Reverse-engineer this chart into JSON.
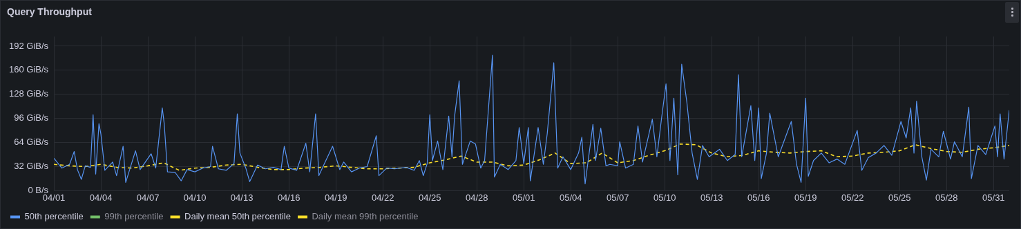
{
  "chart_data": {
    "type": "line",
    "title": "Query Throughput",
    "legend": "bottom",
    "grid": true,
    "marker": "none",
    "xlim": [
      "--04-01",
      "--06-01"
    ],
    "xticks": [
      {
        "value": "--04-01",
        "label": "04/01"
      },
      {
        "value": "--04-04",
        "label": "04/04"
      },
      {
        "value": "--04-07",
        "label": "04/07"
      },
      {
        "value": "--04-10",
        "label": "04/10"
      },
      {
        "value": "--04-13",
        "label": "04/13"
      },
      {
        "value": "--04-16",
        "label": "04/16"
      },
      {
        "value": "--04-19",
        "label": "04/19"
      },
      {
        "value": "--04-22",
        "label": "04/22"
      },
      {
        "value": "--04-25",
        "label": "04/25"
      },
      {
        "value": "--04-28",
        "label": "04/28"
      },
      {
        "value": "--05-01",
        "label": "05/01"
      },
      {
        "value": "--05-04",
        "label": "05/04"
      },
      {
        "value": "--05-07",
        "label": "05/07"
      },
      {
        "value": "--05-10",
        "label": "05/10"
      },
      {
        "value": "--05-13",
        "label": "05/13"
      },
      {
        "value": "--05-16",
        "label": "05/16"
      },
      {
        "value": "--05-19",
        "label": "05/19"
      },
      {
        "value": "--05-22",
        "label": "05/22"
      },
      {
        "value": "--05-25",
        "label": "05/25"
      },
      {
        "value": "--05-28",
        "label": "05/28"
      },
      {
        "value": "--05-31",
        "label": "05/31"
      }
    ],
    "ylim": [
      0,
      205
    ],
    "yticks": [
      {
        "value": 0,
        "label": "0 B/s"
      },
      {
        "value": 32,
        "label": "32 GiB/s"
      },
      {
        "value": 64,
        "label": "64 GiB/s"
      },
      {
        "value": 96,
        "label": "96 GiB/s"
      },
      {
        "value": 128,
        "label": "128 GiB/s"
      },
      {
        "value": 160,
        "label": "160 GiB/s"
      },
      {
        "value": 192,
        "label": "192 GiB/s"
      }
    ],
    "series": [
      {
        "name": "50th percentile",
        "color": "#5794f2",
        "line_style": "solid",
        "x": [
          "--04-01T00:00",
          "--04-01T12:00",
          "--04-02T00:00",
          "--04-02T07:00",
          "--04-02T12:00",
          "--04-02T18:00",
          "--04-03T00:00",
          "--04-03T08:00",
          "--04-03T12:00",
          "--04-03T16:00",
          "--04-03T21:00",
          "--04-04T00:00",
          "--04-04T06:00",
          "--04-04T18:00",
          "--04-05T00:00",
          "--04-05T10:00",
          "--04-05T14:00",
          "--04-06T05:00",
          "--04-06T12:00",
          "--04-07T05:00",
          "--04-07T12:00",
          "--04-07T22:00",
          "--04-08T01:00",
          "--04-08T06:00",
          "--04-08T18:00",
          "--04-09T03:00",
          "--04-09T12:00",
          "--04-10T00:00",
          "--04-10T12:00",
          "--04-11T00:00",
          "--04-11T03:00",
          "--04-11T12:00",
          "--04-12T00:00",
          "--04-12T12:00",
          "--04-12T17:00",
          "--04-12T21:00",
          "--04-13T06:00",
          "--04-13T12:00",
          "--04-14T00:00",
          "--04-14T12:00",
          "--04-15T00:00",
          "--04-15T12:00",
          "--04-15T17:00",
          "--04-16T00:00",
          "--04-16T12:00",
          "--04-17T02:00",
          "--04-17T08:00",
          "--04-17T17:00",
          "--04-17T22:00",
          "--04-18T06:00",
          "--04-18T19:00",
          "--04-19T06:00",
          "--04-19T12:00",
          "--04-20T00:00",
          "--04-20T12:00",
          "--04-21T00:00",
          "--04-21T14:00",
          "--04-21T18:00",
          "--04-22T06:00",
          "--04-22T18:00",
          "--04-23T12:00",
          "--04-24T00:00",
          "--04-24T08:00",
          "--04-24T14:00",
          "--04-24T20:00",
          "--04-25T00:00",
          "--04-25T04:00",
          "--04-25T12:00",
          "--04-25T20:00",
          "--04-26T05:00",
          "--04-26T10:00",
          "--04-26T14:00",
          "--04-26T21:00",
          "--04-27T02:00",
          "--04-27T14:00",
          "--04-27T22:00",
          "--04-28T06:00",
          "--04-28T12:00",
          "--04-29T00:00",
          "--04-29T03:00",
          "--04-29T12:00",
          "--04-30T00:00",
          "--04-30T12:00",
          "--04-30T17:00",
          "--05-01T00:00",
          "--05-01T07:00",
          "--05-01T10:00",
          "--05-01T22:00",
          "--05-02T06:00",
          "--05-02T12:00",
          "--05-02T22:00",
          "--05-03T04:00",
          "--05-03T12:00",
          "--05-04T00:00",
          "--05-04T12:00",
          "--05-04T17:00",
          "--05-04T22:00",
          "--05-05T10:00",
          "--05-05T14:00",
          "--05-05T22:00",
          "--05-06T06:00",
          "--05-06T12:00",
          "--05-07T00:00",
          "--05-07T03:00",
          "--05-07T12:00",
          "--05-08T00:00",
          "--05-08T07:00",
          "--05-08T14:00",
          "--05-09T05:00",
          "--05-09T12:00",
          "--05-09T19:00",
          "--05-10T02:00",
          "--05-10T08:00",
          "--05-10T14:00",
          "--05-10T20:00",
          "--05-11T02:00",
          "--05-11T10:00",
          "--05-11T18:00",
          "--05-12T02:00",
          "--05-12T10:00",
          "--05-12T20:00",
          "--05-13T12:00",
          "--05-14T00:00",
          "--05-14T12:00",
          "--05-14T17:00",
          "--05-14T22:00",
          "--05-15T12:00",
          "--05-15T18:00",
          "--05-16T00:00",
          "--05-16T04:00",
          "--05-16T12:00",
          "--05-16T17:00",
          "--05-17T06:00",
          "--05-18T02:00",
          "--05-18T10:00",
          "--05-18T17:00",
          "--05-19T00:00",
          "--05-19T04:00",
          "--05-19T12:00",
          "--05-20T00:00",
          "--05-20T12:00",
          "--05-21T00:00",
          "--05-21T12:00",
          "--05-22T07:00",
          "--05-22T14:00",
          "--05-23T00:00",
          "--05-23T12:00",
          "--05-24T00:00",
          "--05-24T12:00",
          "--05-25T02:00",
          "--05-25T10:00",
          "--05-25T17:00",
          "--05-25T22:00",
          "--05-26T02:00",
          "--05-26T10:00",
          "--05-26T17:00",
          "--05-27T00:00",
          "--05-27T12:00",
          "--05-27T19:00",
          "--05-28T06:00",
          "--05-28T12:00",
          "--05-29T00:00",
          "--05-29T10:00",
          "--05-29T14:00",
          "--05-30T00:00",
          "--05-30T12:00",
          "--05-31T02:00",
          "--05-31T06:00",
          "--05-31T10:00",
          "--05-31T16:00",
          "--06-01T00:00"
        ],
        "values": [
          43,
          30,
          35,
          52,
          28,
          15,
          33,
          31,
          101,
          22,
          89,
          75,
          27,
          38,
          20,
          59,
          11,
          53,
          28,
          49,
          30,
          110,
          89,
          25,
          24,
          13,
          28,
          25,
          30,
          32,
          59,
          29,
          27,
          36,
          102,
          50,
          30,
          12,
          34,
          29,
          31,
          28,
          59,
          30,
          27,
          63,
          25,
          102,
          20,
          35,
          59,
          28,
          38,
          25,
          30,
          32,
          73,
          20,
          30,
          29,
          31,
          27,
          40,
          20,
          36,
          101,
          40,
          66,
          28,
          99,
          45,
          99,
          146,
          35,
          66,
          62,
          30,
          40,
          180,
          18,
          35,
          28,
          40,
          84,
          36,
          84,
          13,
          84,
          35,
          76,
          170,
          30,
          45,
          28,
          50,
          71,
          9,
          88,
          40,
          83,
          33,
          35,
          33,
          65,
          30,
          35,
          86,
          38,
          95,
          45,
          95,
          142,
          40,
          123,
          21,
          168,
          117,
          50,
          15,
          60,
          45,
          55,
          40,
          48,
          154,
          45,
          113,
          40,
          110,
          16,
          50,
          103,
          45,
          92,
          35,
          11,
          123,
          19,
          40,
          50,
          37,
          42,
          35,
          80,
          27,
          44,
          50,
          60,
          47,
          92,
          70,
          110,
          50,
          119,
          45,
          14,
          55,
          45,
          79,
          42,
          65,
          45,
          111,
          16,
          60,
          48,
          86,
          45,
          102,
          42,
          107
        ]
      },
      {
        "name": "99th percentile",
        "color": "#73bf69"
      },
      {
        "name": "Daily mean 50th percentile",
        "color": "#fade2a",
        "line_style": "dashed",
        "x": [
          "--04-01",
          "--04-02",
          "--04-03",
          "--04-04",
          "--04-05",
          "--04-06",
          "--04-07",
          "--04-08",
          "--04-09",
          "--04-10",
          "--04-11",
          "--04-12",
          "--04-13",
          "--04-14",
          "--04-15",
          "--04-16",
          "--04-17",
          "--04-18",
          "--04-19",
          "--04-20",
          "--04-21",
          "--04-22",
          "--04-23",
          "--04-24",
          "--04-25",
          "--04-26",
          "--04-27",
          "--04-28",
          "--04-29",
          "--04-30",
          "--05-01",
          "--05-02",
          "--05-03",
          "--05-04",
          "--05-05",
          "--05-06",
          "--05-07",
          "--05-08",
          "--05-09",
          "--05-10",
          "--05-11",
          "--05-12",
          "--05-13",
          "--05-14",
          "--05-15",
          "--05-16",
          "--05-17",
          "--05-18",
          "--05-19",
          "--05-20",
          "--05-21",
          "--05-22",
          "--05-23",
          "--05-24",
          "--05-25",
          "--05-26",
          "--05-27",
          "--05-28",
          "--05-29",
          "--05-30",
          "--05-31",
          "--06-01"
        ],
        "values": [
          35,
          33,
          32,
          35,
          31,
          30,
          33,
          37,
          27,
          30,
          31,
          34,
          35,
          31,
          28,
          28,
          30,
          31,
          33,
          31,
          29,
          29,
          30,
          31,
          37,
          41,
          46,
          38,
          38,
          33,
          34,
          41,
          50,
          36,
          37,
          50,
          37,
          40,
          47,
          53,
          62,
          61,
          50,
          45,
          47,
          53,
          51,
          50,
          52,
          53,
          45,
          46,
          50,
          51,
          53,
          61,
          56,
          52,
          51,
          55,
          57,
          60
        ]
      },
      {
        "name": "Daily mean 99th percentile",
        "color": "#fade2a"
      }
    ]
  }
}
